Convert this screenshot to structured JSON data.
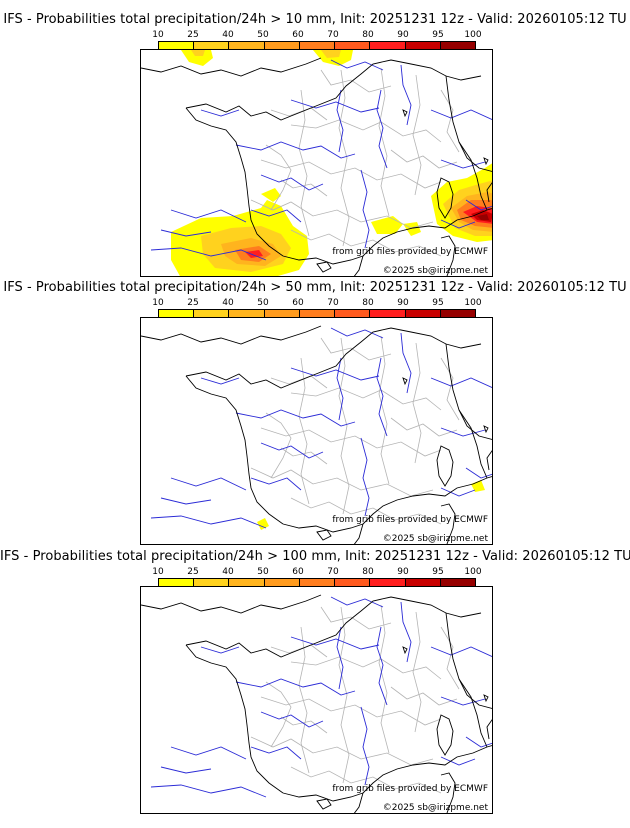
{
  "colorbar": {
    "ticks": [
      "10",
      "25",
      "40",
      "50",
      "60",
      "70",
      "80",
      "90",
      "95",
      "100"
    ],
    "colors": [
      "#ffff00",
      "#ffd21e",
      "#ffb41e",
      "#ff9b1e",
      "#ff7d1e",
      "#ff5a1e",
      "#ff1e1e",
      "#c80000",
      "#960000",
      "#640000"
    ]
  },
  "panels": [
    {
      "title": "IFS - Probabilities total precipitation/24h > 10 mm, Init: 20251231 12z - Valid: 20260105:12 TU",
      "credit_source": "from grib files provided by ECMWF",
      "credit_copyright": "©2025 sb@irizpme.net"
    },
    {
      "title": "IFS - Probabilities total precipitation/24h > 50 mm, Init: 20251231 12z - Valid: 20260105:12 TU",
      "credit_source": "from grib files provided by ECMWF",
      "credit_copyright": "©2025 sb@irizpme.net"
    },
    {
      "title": "IFS - Probabilities total precipitation/24h > 100 mm, Init: 20251231 12z - Valid: 20260105:12 TU",
      "credit_source": "from grib files provided by ECMWF",
      "credit_copyright": "©2025 sb@irizpme.net"
    }
  ],
  "map_colors": {
    "coast": "#000000",
    "rivers": "#2b2bd6",
    "admin": "#b4b4b4"
  }
}
